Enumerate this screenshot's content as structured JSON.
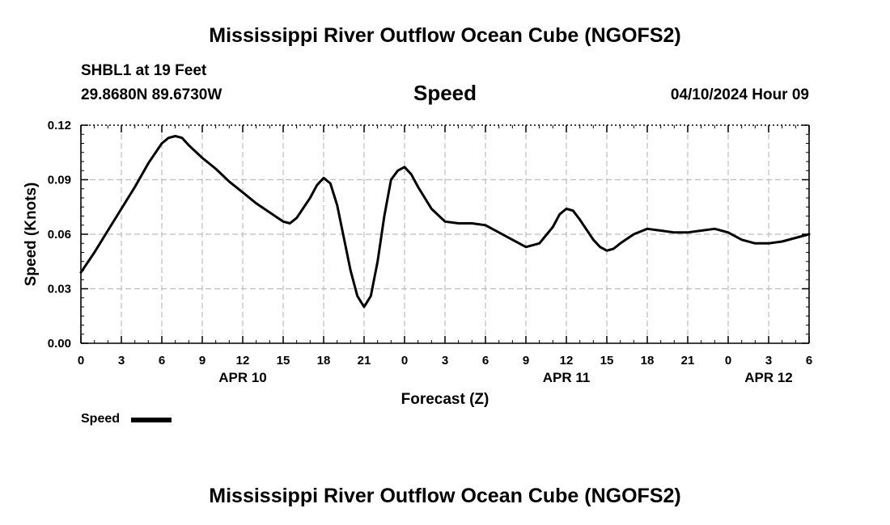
{
  "header": {
    "title": "Mississippi River Outflow Ocean Cube (NGOFS2)",
    "station": "SHBL1 at 19 Feet",
    "coords": "29.8680N  89.6730W",
    "chart_title": "Speed",
    "datetime": "04/10/2024 Hour 09"
  },
  "footer": {
    "title": "Mississippi River Outflow Ocean Cube (NGOFS2)"
  },
  "chart_data": {
    "type": "line",
    "title": "Speed",
    "xlabel": "Forecast (Z)",
    "ylabel": "Speed (Knots)",
    "ylim": [
      0,
      0.12
    ],
    "xlim": [
      0,
      54
    ],
    "grid": true,
    "legend": "bottom-left",
    "y_ticks": [
      "0.00",
      "0.03",
      "0.06",
      "0.09",
      "0.12"
    ],
    "x_ticks": [
      "0",
      "3",
      "6",
      "9",
      "12",
      "15",
      "18",
      "21",
      "0",
      "3",
      "6",
      "9",
      "12",
      "15",
      "18",
      "21",
      "0",
      "3",
      "6"
    ],
    "date_labels": [
      {
        "label": "APR 10",
        "hour": 12
      },
      {
        "label": "APR 11",
        "hour": 36
      },
      {
        "label": "APR 12",
        "hour": 51
      }
    ],
    "series": [
      {
        "name": "Speed",
        "color": "#000000",
        "points": [
          [
            0,
            0.039
          ],
          [
            1,
            0.05
          ],
          [
            2,
            0.062
          ],
          [
            3,
            0.074
          ],
          [
            4,
            0.086
          ],
          [
            5,
            0.099
          ],
          [
            6,
            0.11
          ],
          [
            6.5,
            0.113
          ],
          [
            7,
            0.114
          ],
          [
            7.5,
            0.113
          ],
          [
            8,
            0.109
          ],
          [
            9,
            0.102
          ],
          [
            10,
            0.096
          ],
          [
            11,
            0.089
          ],
          [
            12,
            0.083
          ],
          [
            13,
            0.077
          ],
          [
            14,
            0.072
          ],
          [
            15,
            0.067
          ],
          [
            15.5,
            0.066
          ],
          [
            16,
            0.069
          ],
          [
            17,
            0.08
          ],
          [
            17.5,
            0.087
          ],
          [
            18,
            0.091
          ],
          [
            18.5,
            0.088
          ],
          [
            19,
            0.076
          ],
          [
            19.5,
            0.058
          ],
          [
            20,
            0.04
          ],
          [
            20.5,
            0.026
          ],
          [
            21,
            0.02
          ],
          [
            21.5,
            0.026
          ],
          [
            22,
            0.045
          ],
          [
            22.5,
            0.07
          ],
          [
            23,
            0.09
          ],
          [
            23.5,
            0.095
          ],
          [
            24,
            0.097
          ],
          [
            24.5,
            0.093
          ],
          [
            25,
            0.086
          ],
          [
            26,
            0.074
          ],
          [
            27,
            0.067
          ],
          [
            28,
            0.066
          ],
          [
            29,
            0.066
          ],
          [
            30,
            0.065
          ],
          [
            31,
            0.061
          ],
          [
            32,
            0.057
          ],
          [
            33,
            0.053
          ],
          [
            34,
            0.055
          ],
          [
            35,
            0.064
          ],
          [
            35.5,
            0.071
          ],
          [
            36,
            0.074
          ],
          [
            36.5,
            0.073
          ],
          [
            37,
            0.068
          ],
          [
            38,
            0.057
          ],
          [
            38.5,
            0.053
          ],
          [
            39,
            0.051
          ],
          [
            39.5,
            0.052
          ],
          [
            40,
            0.055
          ],
          [
            41,
            0.06
          ],
          [
            42,
            0.063
          ],
          [
            43,
            0.062
          ],
          [
            44,
            0.061
          ],
          [
            45,
            0.061
          ],
          [
            46,
            0.062
          ],
          [
            47,
            0.063
          ],
          [
            48,
            0.061
          ],
          [
            49,
            0.057
          ],
          [
            50,
            0.055
          ],
          [
            51,
            0.055
          ],
          [
            52,
            0.056
          ],
          [
            53,
            0.058
          ],
          [
            54,
            0.06
          ]
        ]
      }
    ]
  }
}
